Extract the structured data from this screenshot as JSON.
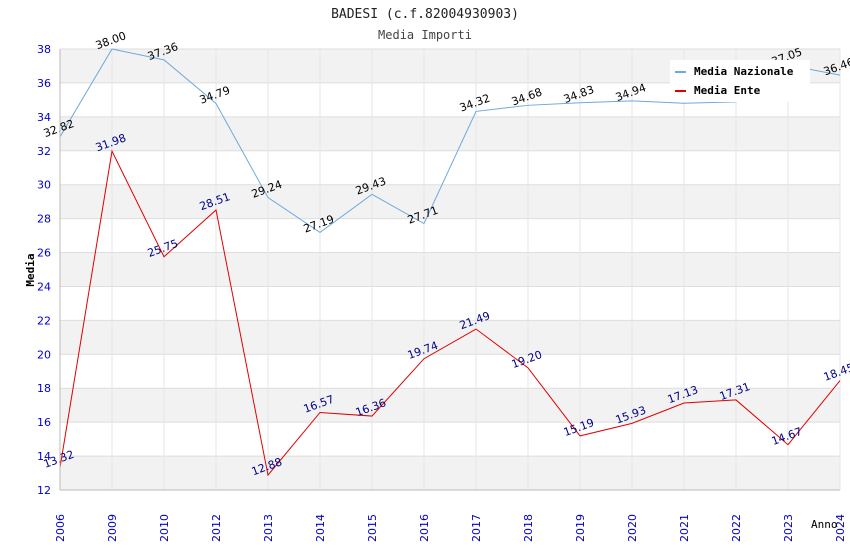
{
  "chart_data": {
    "type": "line",
    "title": "BADESI (c.f.82004930903)",
    "subtitle": "Media Importi",
    "xlabel": "Anno",
    "ylabel": "Media",
    "ylim": [
      12,
      38
    ],
    "yticks": [
      12,
      14,
      16,
      18,
      20,
      22,
      24,
      26,
      28,
      30,
      32,
      34,
      36,
      38
    ],
    "categories": [
      "2006",
      "2009",
      "2010",
      "2012",
      "2013",
      "2014",
      "2015",
      "2016",
      "2017",
      "2018",
      "2019",
      "2020",
      "2021",
      "2022",
      "2023",
      "2024"
    ],
    "series": [
      {
        "name": "Media Nazionale",
        "color": "#6fa8dc",
        "label_color": "#000000",
        "values": [
          32.82,
          38.0,
          37.36,
          34.79,
          29.24,
          27.19,
          29.43,
          27.71,
          34.32,
          34.68,
          34.83,
          34.94,
          null,
          null,
          37.05,
          36.46
        ],
        "labels": [
          "32.82",
          "38.00",
          "37.36",
          "34.79",
          "29.24",
          "27.19",
          "29.43",
          "27.71",
          "34.32",
          "34.68",
          "34.83",
          "34.94",
          "",
          "",
          "37.05",
          "36.46"
        ],
        "line_values": [
          32.82,
          38.0,
          37.36,
          34.79,
          29.24,
          27.19,
          29.43,
          27.71,
          34.32,
          34.68,
          34.83,
          34.94,
          34.8,
          34.88,
          37.05,
          36.46
        ]
      },
      {
        "name": "Media Ente",
        "color": "#e00000",
        "label_color": "#00008b",
        "values": [
          13.32,
          31.98,
          25.75,
          28.51,
          12.88,
          16.57,
          16.36,
          19.74,
          21.49,
          19.2,
          15.19,
          15.93,
          17.13,
          17.31,
          14.67,
          18.45
        ],
        "labels": [
          "13.32",
          "31.98",
          "25.75",
          "28.51",
          "12.88",
          "16.57",
          "16.36",
          "19.74",
          "21.49",
          "19.20",
          "15.19",
          "15.93",
          "17.13",
          "17.31",
          "14.67",
          "18.45"
        ],
        "line_values": [
          13.32,
          31.98,
          25.75,
          28.51,
          12.88,
          16.57,
          16.36,
          19.74,
          21.49,
          19.2,
          15.19,
          15.93,
          17.13,
          17.31,
          14.67,
          18.45
        ]
      }
    ],
    "legend_position": "top-right",
    "grid": true,
    "colors": {
      "band": "#f2f2f2",
      "grid": "#dddddd",
      "axis_text": "#0000cc",
      "title_text": "#222222"
    }
  }
}
